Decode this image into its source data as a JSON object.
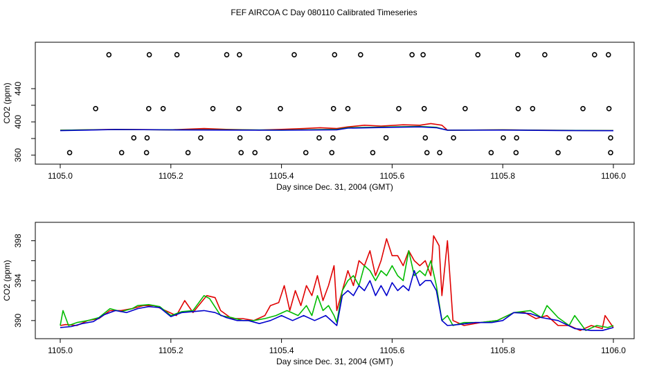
{
  "figure": {
    "title": "FEF AIRCOA C  Day 080110  Calibrated Timeseries"
  },
  "chart_data": [
    {
      "type": "line+scatter",
      "panel": "top",
      "xlabel": "Day since Dec. 31, 2004 (GMT)",
      "ylabel": "CO2 (ppm)",
      "xlim": [
        1105.0,
        1106.0
      ],
      "ylim": [
        355,
        490
      ],
      "xticks": [
        1105.0,
        1105.2,
        1105.4,
        1105.6,
        1105.8,
        1106.0
      ],
      "xtick_labels": [
        "1105.0",
        "1105.2",
        "1105.4",
        "1105.6",
        "1105.8",
        "1106.0"
      ],
      "yticks": [
        360,
        400,
        440
      ],
      "ytick_labels": [
        "360",
        "400",
        "440"
      ],
      "points": [
        {
          "name": "calibration-points-480",
          "y": 480.8,
          "x": [
            1105.088,
            1105.161,
            1105.211,
            1105.301,
            1105.324,
            1105.423,
            1105.496,
            1105.543,
            1105.636,
            1105.656,
            1105.755,
            1105.827,
            1105.876,
            1105.966,
            1105.991
          ]
        },
        {
          "name": "calibration-points-416",
          "y": 416.0,
          "x": [
            1105.064,
            1105.16,
            1105.186,
            1105.276,
            1105.323,
            1105.398,
            1105.494,
            1105.52,
            1105.612,
            1105.658,
            1105.732,
            1105.828,
            1105.854,
            1105.945,
            1105.992
          ]
        },
        {
          "name": "calibration-points-380",
          "y": 380.8,
          "x": [
            1105.133,
            1105.157,
            1105.254,
            1105.325,
            1105.376,
            1105.468,
            1105.493,
            1105.589,
            1105.66,
            1105.711,
            1105.801,
            1105.825,
            1105.92,
            1105.995
          ]
        },
        {
          "name": "calibration-points-363",
          "y": 363.0,
          "x": [
            1105.017,
            1105.111,
            1105.156,
            1105.231,
            1105.327,
            1105.352,
            1105.444,
            1105.491,
            1105.565,
            1105.663,
            1105.686,
            1105.779,
            1105.824,
            1105.9,
            1105.995
          ]
        }
      ],
      "series": [
        {
          "name": "red",
          "color": "#e00000",
          "x": [
            1105.0,
            1105.1,
            1105.2,
            1105.26,
            1105.3,
            1105.36,
            1105.4,
            1105.44,
            1105.47,
            1105.5,
            1105.52,
            1105.55,
            1105.58,
            1105.62,
            1105.65,
            1105.67,
            1105.69,
            1105.7,
            1105.8,
            1105.9,
            1106.0
          ],
          "y": [
            390,
            391,
            390.5,
            392,
            391,
            390.2,
            391,
            392,
            393,
            392,
            394,
            396,
            395,
            396.5,
            396,
            398,
            396,
            390,
            390.5,
            389.8,
            389.5
          ]
        },
        {
          "name": "green",
          "color": "#00bb00",
          "x": [
            1105.0,
            1105.1,
            1105.2,
            1105.3,
            1105.4,
            1105.5,
            1105.52,
            1105.6,
            1105.65,
            1105.68,
            1105.7,
            1105.8,
            1105.9,
            1106.0
          ],
          "y": [
            390,
            390.8,
            390.5,
            390.5,
            390.2,
            391,
            393,
            394,
            394.5,
            393.5,
            390,
            390.3,
            389.8,
            389.5
          ]
        },
        {
          "name": "blue",
          "color": "#0000cc",
          "x": [
            1105.0,
            1105.1,
            1105.2,
            1105.3,
            1105.4,
            1105.5,
            1105.52,
            1105.6,
            1105.65,
            1105.68,
            1105.7,
            1105.8,
            1105.9,
            1106.0
          ],
          "y": [
            389.5,
            390.8,
            390.4,
            390.2,
            390,
            390.5,
            392.5,
            393.5,
            394,
            393,
            390,
            390.2,
            389.7,
            389.4
          ]
        }
      ]
    },
    {
      "type": "line",
      "panel": "bottom",
      "xlabel": "Day since Dec. 31, 2004 (GMT)",
      "ylabel": "CO2 (ppm)",
      "xlim": [
        1105.0,
        1106.0
      ],
      "ylim": [
        388.6,
        399.5
      ],
      "xticks": [
        1105.0,
        1105.2,
        1105.4,
        1105.6,
        1105.8,
        1106.0
      ],
      "xtick_labels": [
        "1105.0",
        "1105.2",
        "1105.4",
        "1105.6",
        "1105.8",
        "1106.0"
      ],
      "yticks": [
        390,
        394,
        398
      ],
      "ytick_labels": [
        "390",
        "394",
        "398"
      ],
      "series": [
        {
          "name": "red",
          "color": "#e00000",
          "x": [
            1105.0,
            1105.01,
            1105.03,
            1105.05,
            1105.07,
            1105.09,
            1105.11,
            1105.13,
            1105.15,
            1105.17,
            1105.19,
            1105.21,
            1105.225,
            1105.24,
            1105.25,
            1105.265,
            1105.28,
            1105.29,
            1105.31,
            1105.33,
            1105.35,
            1105.37,
            1105.38,
            1105.395,
            1105.405,
            1105.415,
            1105.425,
            1105.435,
            1105.445,
            1105.455,
            1105.465,
            1105.475,
            1105.485,
            1105.495,
            1105.5,
            1105.51,
            1105.52,
            1105.53,
            1105.54,
            1105.55,
            1105.56,
            1105.57,
            1105.58,
            1105.59,
            1105.6,
            1105.61,
            1105.62,
            1105.63,
            1105.64,
            1105.65,
            1105.66,
            1105.67,
            1105.675,
            1105.685,
            1105.69,
            1105.7,
            1105.71,
            1105.73,
            1105.76,
            1105.79,
            1105.82,
            1105.84,
            1105.86,
            1105.88,
            1105.9,
            1105.92,
            1105.94,
            1105.96,
            1105.98,
            1105.985,
            1106.0
          ],
          "y": [
            389.5,
            389.6,
            389.5,
            390.0,
            390.2,
            391.0,
            391.0,
            391.2,
            391.5,
            391.5,
            391.0,
            390.5,
            392.0,
            390.8,
            391.5,
            392.5,
            392.3,
            391.0,
            390.2,
            390.2,
            390.0,
            390.5,
            391.5,
            391.8,
            393.5,
            391.0,
            393.0,
            391.5,
            393.5,
            392.5,
            394.5,
            392.0,
            393.5,
            395.5,
            391.0,
            393.0,
            395.0,
            393.5,
            396.0,
            395.5,
            397.0,
            394.5,
            396.0,
            398.2,
            396.5,
            396.5,
            395.5,
            397.0,
            396.0,
            395.5,
            396.0,
            394.5,
            398.5,
            397.5,
            392.5,
            398.0,
            390.0,
            389.5,
            389.8,
            390.0,
            390.8,
            390.8,
            390.2,
            390.5,
            389.5,
            389.5,
            389.0,
            389.5,
            389.2,
            390.5,
            389.3
          ]
        },
        {
          "name": "green",
          "color": "#00bb00",
          "x": [
            1105.0,
            1105.005,
            1105.015,
            1105.03,
            1105.05,
            1105.07,
            1105.09,
            1105.11,
            1105.13,
            1105.14,
            1105.16,
            1105.18,
            1105.2,
            1105.22,
            1105.24,
            1105.26,
            1105.27,
            1105.29,
            1105.31,
            1105.33,
            1105.35,
            1105.37,
            1105.39,
            1105.41,
            1105.43,
            1105.445,
            1105.455,
            1105.465,
            1105.475,
            1105.485,
            1105.495,
            1105.5,
            1105.51,
            1105.52,
            1105.53,
            1105.54,
            1105.55,
            1105.56,
            1105.57,
            1105.58,
            1105.59,
            1105.6,
            1105.61,
            1105.62,
            1105.63,
            1105.64,
            1105.65,
            1105.66,
            1105.67,
            1105.68,
            1105.69,
            1105.7,
            1105.71,
            1105.73,
            1105.76,
            1105.79,
            1105.82,
            1105.85,
            1105.87,
            1105.88,
            1105.9,
            1105.92,
            1105.93,
            1105.95,
            1105.97,
            1105.99,
            1106.0
          ],
          "y": [
            389.5,
            391.0,
            389.5,
            389.8,
            390.0,
            390.3,
            391.2,
            390.9,
            391.2,
            391.5,
            391.6,
            391.4,
            390.5,
            390.9,
            391.0,
            392.5,
            392.2,
            390.5,
            390.3,
            390.0,
            390.0,
            390.2,
            390.5,
            391.0,
            390.5,
            391.5,
            390.5,
            392.5,
            391.0,
            391.5,
            390.5,
            389.8,
            393.0,
            394.0,
            394.5,
            393.5,
            395.5,
            395.0,
            394.0,
            395.0,
            394.5,
            395.5,
            394.5,
            394.0,
            397.0,
            394.5,
            395.0,
            394.5,
            396.0,
            393.5,
            390.0,
            390.5,
            389.5,
            389.8,
            389.8,
            390.0,
            390.8,
            391.0,
            390.3,
            391.5,
            390.3,
            389.5,
            390.5,
            389.0,
            389.5,
            389.3,
            389.5
          ]
        },
        {
          "name": "blue",
          "color": "#0000cc",
          "x": [
            1105.0,
            1105.02,
            1105.04,
            1105.06,
            1105.08,
            1105.1,
            1105.12,
            1105.14,
            1105.16,
            1105.18,
            1105.2,
            1105.22,
            1105.24,
            1105.26,
            1105.28,
            1105.3,
            1105.32,
            1105.34,
            1105.36,
            1105.38,
            1105.4,
            1105.42,
            1105.44,
            1105.46,
            1105.48,
            1105.5,
            1105.51,
            1105.52,
            1105.53,
            1105.54,
            1105.55,
            1105.56,
            1105.57,
            1105.58,
            1105.59,
            1105.6,
            1105.61,
            1105.62,
            1105.63,
            1105.64,
            1105.65,
            1105.66,
            1105.67,
            1105.68,
            1105.69,
            1105.7,
            1105.72,
            1105.75,
            1105.78,
            1105.8,
            1105.82,
            1105.85,
            1105.87,
            1105.9,
            1105.93,
            1105.96,
            1105.98,
            1106.0
          ],
          "y": [
            389.3,
            389.4,
            389.7,
            389.9,
            390.6,
            391.0,
            390.8,
            391.2,
            391.4,
            391.3,
            390.4,
            390.8,
            390.9,
            391.0,
            390.8,
            390.3,
            390.0,
            390.0,
            389.7,
            390.0,
            390.5,
            390.0,
            390.5,
            390.0,
            390.5,
            389.5,
            392.5,
            393.0,
            392.5,
            393.5,
            393.0,
            394.0,
            392.5,
            393.5,
            392.5,
            393.8,
            393.0,
            393.5,
            393.0,
            395.0,
            393.5,
            394.0,
            394.0,
            393.0,
            390.0,
            389.5,
            389.6,
            389.8,
            389.8,
            390.0,
            390.8,
            390.7,
            390.3,
            390.0,
            389.2,
            389.0,
            389.0,
            389.3
          ]
        }
      ]
    }
  ]
}
